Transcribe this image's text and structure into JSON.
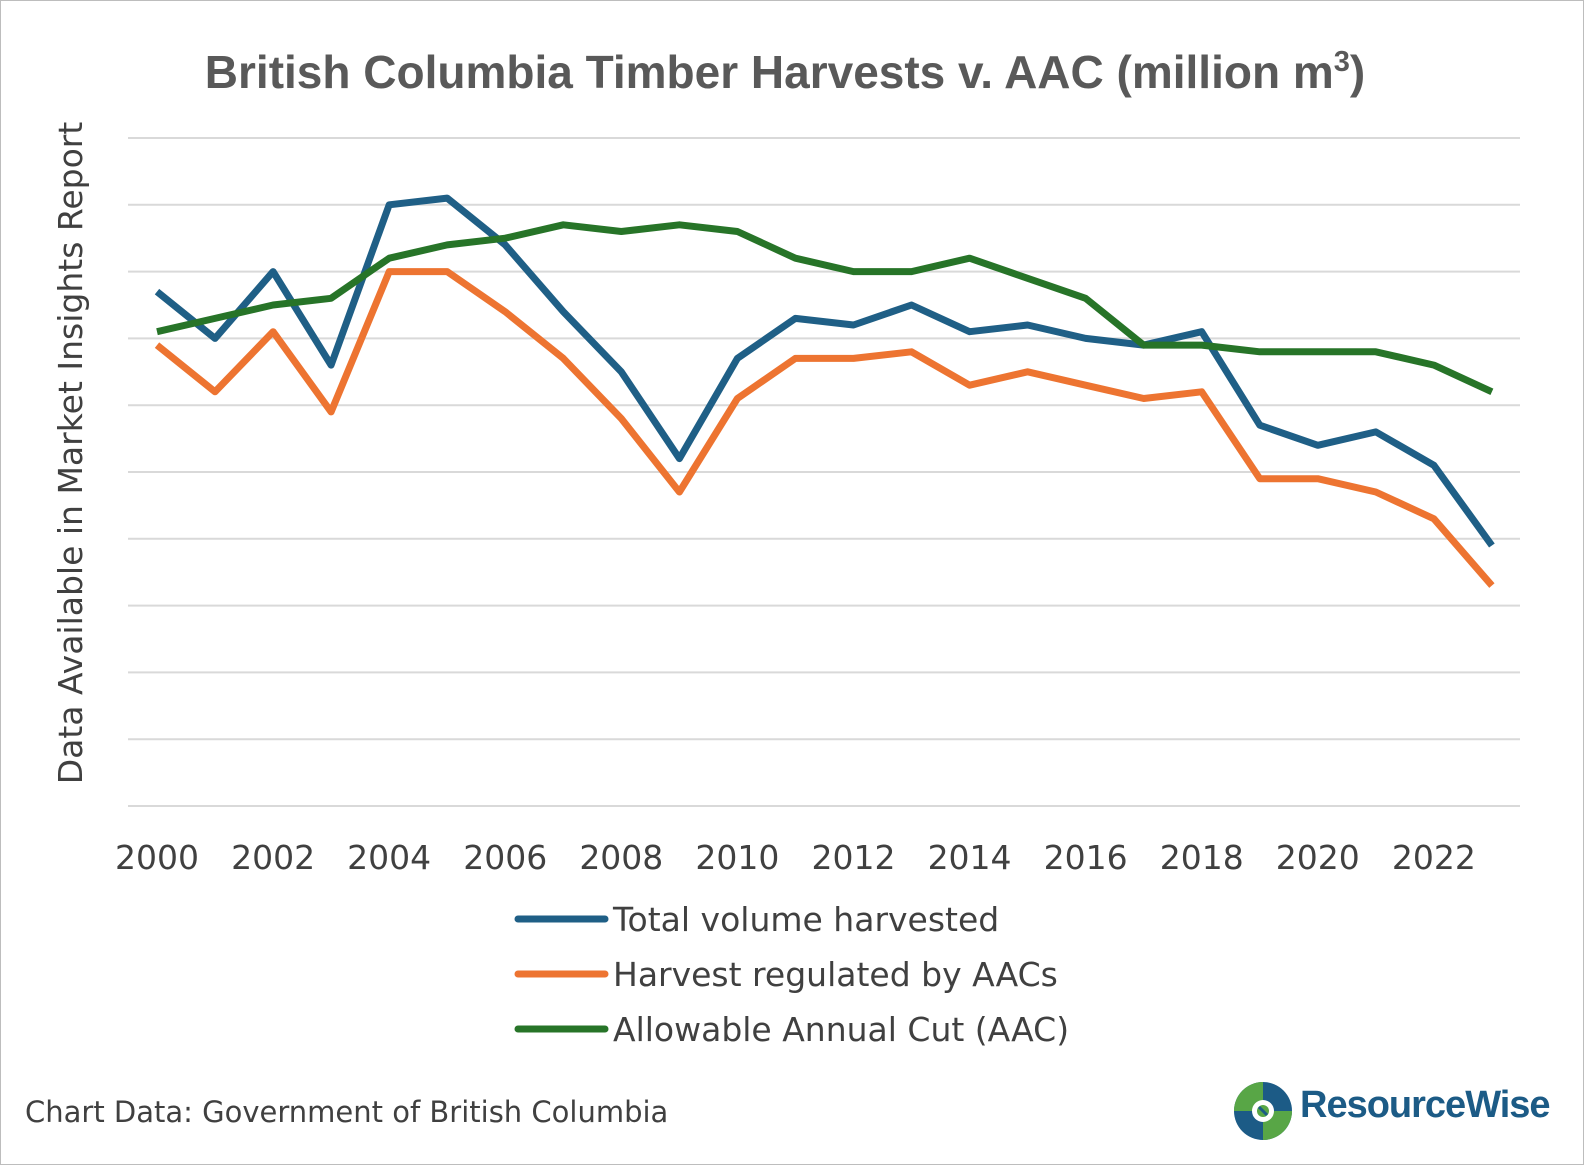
{
  "chart_data": {
    "type": "line",
    "title": "British Columbia Timber Harvests v. AAC (million m",
    "title_superscript": "3",
    "title_suffix": ")",
    "ylabel": "Data Available in Market Insights Report",
    "xlabel": "",
    "x": [
      2000,
      2001,
      2002,
      2003,
      2004,
      2005,
      2006,
      2007,
      2008,
      2009,
      2010,
      2011,
      2012,
      2013,
      2014,
      2015,
      2016,
      2017,
      2018,
      2019,
      2020,
      2021,
      2022,
      2023
    ],
    "x_tick_labels": [
      "2000",
      "2002",
      "2004",
      "2006",
      "2008",
      "2010",
      "2012",
      "2014",
      "2016",
      "2018",
      "2020",
      "2022"
    ],
    "y_gridlines": 11,
    "y_tick_labels_shown": false,
    "ylim": [
      0,
      10
    ],
    "grid": true,
    "legend_position": "bottom",
    "series": [
      {
        "name": "Total volume harvested",
        "color": "#1f5f86",
        "values": [
          7.7,
          7.0,
          8.0,
          6.6,
          9.0,
          9.1,
          8.4,
          7.4,
          6.5,
          5.2,
          6.7,
          7.3,
          7.2,
          7.5,
          7.1,
          7.2,
          7.0,
          6.9,
          7.1,
          5.7,
          5.4,
          5.6,
          5.1,
          3.9
        ]
      },
      {
        "name": "Harvest regulated by AACs",
        "color": "#ed7431",
        "values": [
          6.9,
          6.2,
          7.1,
          5.9,
          8.0,
          8.0,
          7.4,
          6.7,
          5.8,
          4.7,
          6.1,
          6.7,
          6.7,
          6.8,
          6.3,
          6.5,
          6.3,
          6.1,
          6.2,
          4.9,
          4.9,
          4.7,
          4.3,
          3.3
        ]
      },
      {
        "name": "Allowable Annual Cut (AAC)",
        "color": "#277428",
        "values": [
          7.1,
          7.3,
          7.5,
          7.6,
          8.2,
          8.4,
          8.5,
          8.7,
          8.6,
          8.7,
          8.6,
          8.2,
          8.0,
          8.0,
          8.2,
          7.9,
          7.6,
          6.9,
          6.9,
          6.8,
          6.8,
          6.8,
          6.6,
          6.2
        ]
      }
    ]
  },
  "source_note": "Chart Data: Government of British Columbia",
  "brand": {
    "name": "ResourceWise",
    "logo_icon": "resourcewise-logo-icon",
    "colors": {
      "green": "#58a646",
      "blue": "#1c5b86"
    }
  },
  "colors": {
    "gridline": "#d9d9d9",
    "text": "#404040",
    "title": "#595959"
  }
}
